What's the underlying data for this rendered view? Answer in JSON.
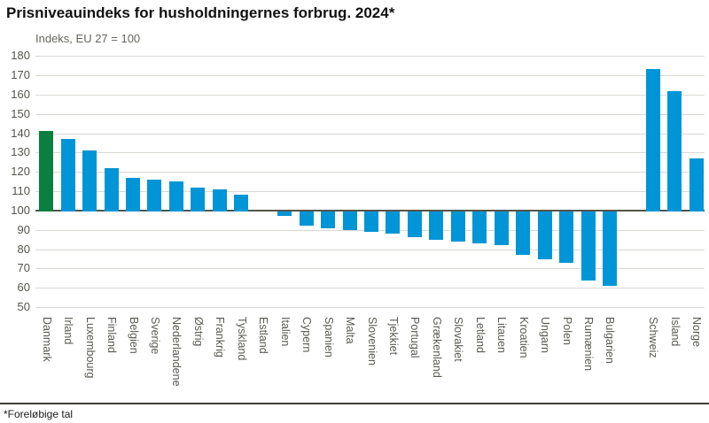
{
  "header": {
    "title": "Prisniveauindeks for husholdningernes forbrug. 2024*",
    "subtitle": "Indeks, EU 27 = 100"
  },
  "footer": {
    "footnote": "*Foreløbige tal"
  },
  "colors": {
    "bar_blue": "#0095d6",
    "bar_green_highlight": "#0a8040",
    "gridline": "#d9d8d3",
    "axis_line": "#55544a",
    "bottom_rule": "#3f3e38",
    "tick_text": "#55544c"
  },
  "chart_data": {
    "type": "bar",
    "title": "Prisniveauindeks for husholdningernes forbrug. 2024*",
    "subtitle": "Indeks, EU 27 = 100",
    "xlabel": "",
    "ylabel": "Indeks, EU 27 = 100",
    "ylim": [
      50,
      180
    ],
    "yticks": [
      50,
      60,
      70,
      80,
      90,
      100,
      110,
      120,
      130,
      140,
      150,
      160,
      170,
      180
    ],
    "baseline_value": 100,
    "grid": true,
    "legend": false,
    "highlight_category": "Danmark",
    "separator_gap_after_index": 26,
    "categories": [
      "Danmark",
      "Irland",
      "Luxembourg",
      "Finland",
      "Belgien",
      "Sverige",
      "Nederlandene",
      "Østrig",
      "Frankrig",
      "Tyskland",
      "Estland",
      "Italien",
      "Cypern",
      "Spanien",
      "Malta",
      "Slovenien",
      "Tjekkiet",
      "Portugal",
      "Grækenland",
      "Slovakiet",
      "Letland",
      "Litauen",
      "Kroatien",
      "Ungarn",
      "Polen",
      "Rumænien",
      "Bulgarien",
      "Schweiz",
      "Island",
      "Norge"
    ],
    "values": [
      141,
      137,
      131,
      122,
      117,
      116,
      115,
      112,
      111,
      108,
      100,
      97,
      92,
      91,
      90,
      89,
      88,
      86,
      85,
      84,
      83,
      82,
      77,
      75,
      73,
      64,
      61,
      173,
      162,
      127
    ]
  }
}
